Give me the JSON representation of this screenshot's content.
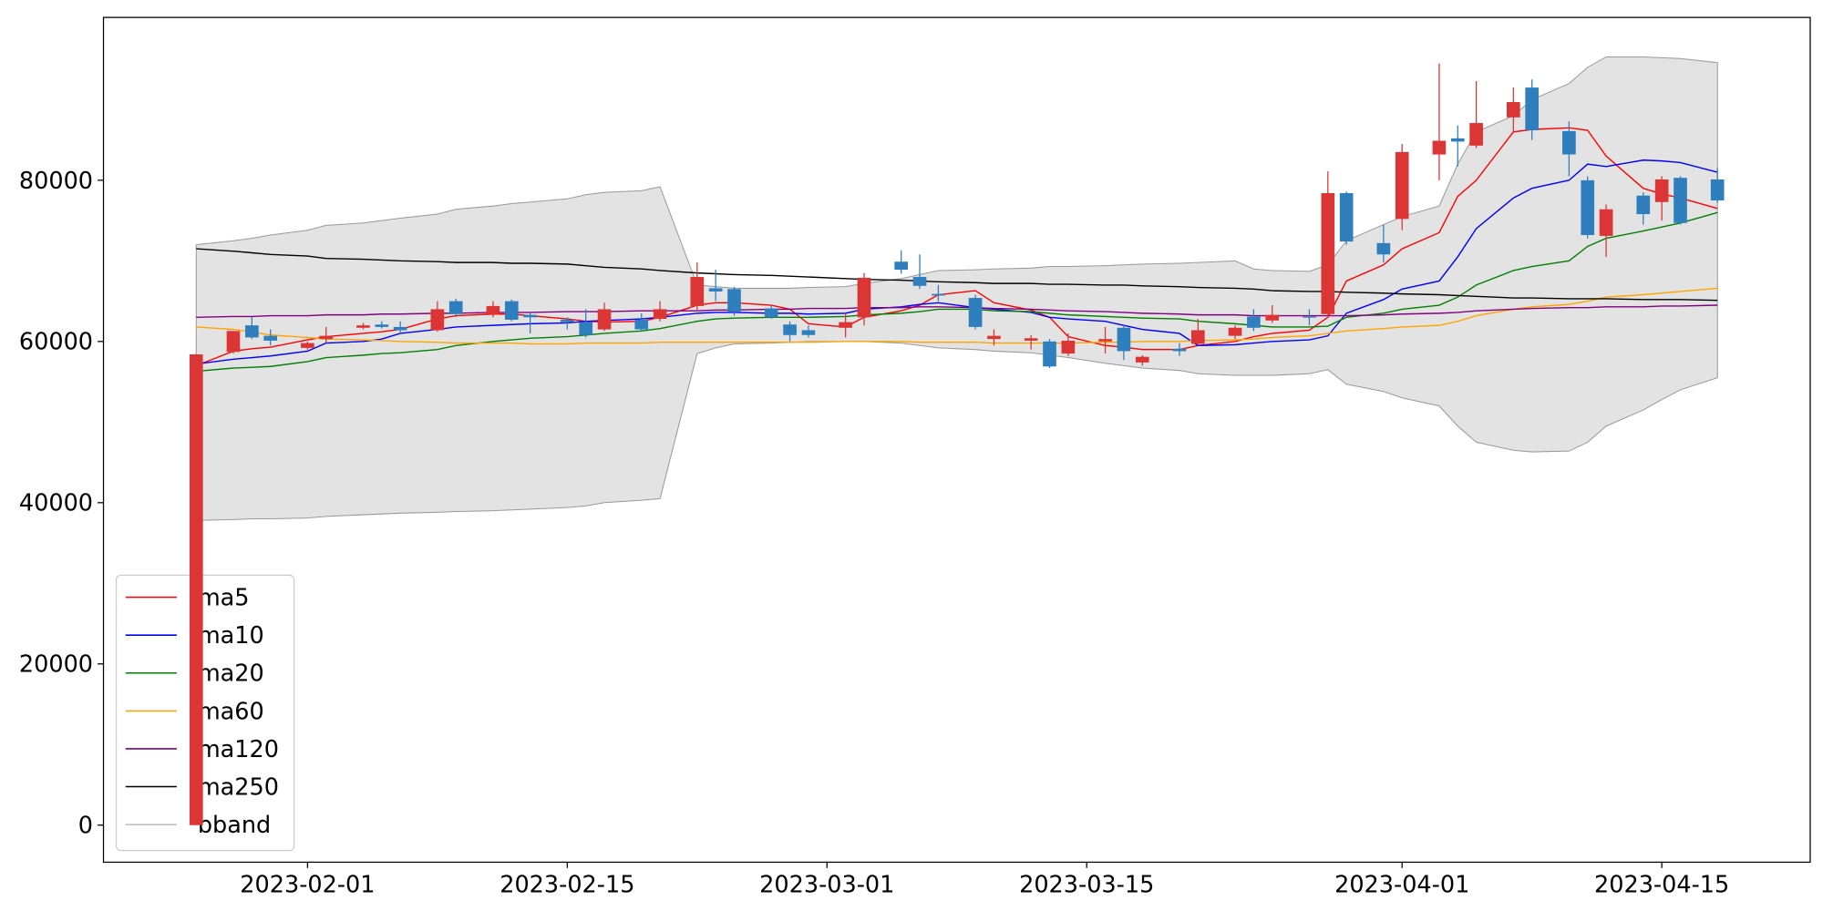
{
  "chart_data": {
    "type": "candlestick",
    "x": [
      "2023-01-26",
      "2023-01-28",
      "2023-01-29",
      "2023-01-30",
      "2023-02-01",
      "2023-02-02",
      "2023-02-04",
      "2023-02-05",
      "2023-02-06",
      "2023-02-08",
      "2023-02-09",
      "2023-02-11",
      "2023-02-12",
      "2023-02-13",
      "2023-02-15",
      "2023-02-16",
      "2023-02-17",
      "2023-02-19",
      "2023-02-20",
      "2023-02-22",
      "2023-02-23",
      "2023-02-24",
      "2023-02-26",
      "2023-02-27",
      "2023-02-28",
      "2023-03-02",
      "2023-03-03",
      "2023-03-05",
      "2023-03-06",
      "2023-03-07",
      "2023-03-09",
      "2023-03-10",
      "2023-03-12",
      "2023-03-13",
      "2023-03-14",
      "2023-03-16",
      "2023-03-17",
      "2023-03-18",
      "2023-03-20",
      "2023-03-21",
      "2023-03-23",
      "2023-03-24",
      "2023-03-25",
      "2023-03-27",
      "2023-03-28",
      "2023-03-29",
      "2023-03-31",
      "2023-04-01",
      "2023-04-03",
      "2023-04-04",
      "2023-04-05",
      "2023-04-07",
      "2023-04-08",
      "2023-04-10",
      "2023-04-11",
      "2023-04-12",
      "2023-04-14",
      "2023-04-15",
      "2023-04-16",
      "2023-04-18"
    ],
    "open": [
      0,
      58700,
      62000,
      60700,
      59200,
      60300,
      61700,
      62100,
      61800,
      61400,
      65000,
      63400,
      65000,
      63300,
      62700,
      62400,
      61500,
      62700,
      62800,
      64400,
      66600,
      66500,
      64100,
      62100,
      61400,
      61700,
      63000,
      69900,
      68000,
      65900,
      65400,
      60300,
      60100,
      60000,
      58500,
      60000,
      61700,
      57400,
      59100,
      59700,
      60700,
      63100,
      62600,
      63100,
      63400,
      78400,
      72200,
      75200,
      83200,
      85200,
      84300,
      87800,
      91500,
      86100,
      80000,
      73100,
      78100,
      77300,
      80300,
      80100
    ],
    "high": [
      58400,
      61300,
      63000,
      61500,
      60000,
      61800,
      62300,
      62500,
      62500,
      65000,
      65300,
      65000,
      65200,
      63500,
      63000,
      64000,
      64800,
      63500,
      65000,
      69800,
      68900,
      66800,
      64500,
      62500,
      62000,
      63500,
      68500,
      71300,
      70800,
      67000,
      65800,
      61500,
      60800,
      60300,
      61000,
      61800,
      62000,
      58300,
      59800,
      62800,
      62000,
      64000,
      64500,
      64000,
      81100,
      78600,
      74500,
      84500,
      94500,
      86800,
      92300,
      91500,
      92500,
      87300,
      80500,
      77000,
      78500,
      80500,
      80500,
      81500
    ],
    "low": [
      0,
      58500,
      60300,
      59500,
      59000,
      59800,
      61500,
      61600,
      61000,
      61200,
      63000,
      63000,
      62500,
      61000,
      61500,
      60500,
      61300,
      61200,
      62500,
      63800,
      65000,
      63200,
      62800,
      60000,
      60500,
      60500,
      62000,
      68400,
      66500,
      65000,
      61500,
      59500,
      59000,
      56700,
      58200,
      58500,
      57700,
      57000,
      58200,
      59500,
      60300,
      61300,
      62300,
      62000,
      63000,
      72000,
      69800,
      73800,
      80000,
      81700,
      84000,
      86000,
      85000,
      80500,
      72800,
      70500,
      74500,
      75000,
      74500,
      77200
    ],
    "close": [
      58400,
      61300,
      60500,
      60100,
      59800,
      60700,
      62000,
      61800,
      61400,
      64000,
      63400,
      64400,
      62700,
      63000,
      62400,
      60800,
      64000,
      61500,
      64000,
      68000,
      66200,
      63700,
      63000,
      60800,
      60800,
      62400,
      67900,
      68900,
      66900,
      65700,
      61800,
      60700,
      60400,
      56900,
      60100,
      60300,
      58800,
      58100,
      58800,
      61400,
      61700,
      61700,
      63300,
      63000,
      78400,
      72400,
      70800,
      83500,
      84900,
      84800,
      87100,
      89700,
      86200,
      83200,
      73200,
      76400,
      75800,
      80100,
      74700,
      77500
    ],
    "up_color": "#dc3535",
    "down_color": "#2f7fbf",
    "series": [
      {
        "name": "ma5",
        "color": "#ff0000",
        "values": [
          57000,
          58800,
          59100,
          59300,
          60200,
          60600,
          61000,
          61200,
          61500,
          62800,
          63200,
          63400,
          63400,
          63200,
          62800,
          62500,
          62400,
          62500,
          63000,
          64500,
          64800,
          64800,
          64500,
          64000,
          62200,
          61800,
          63000,
          63800,
          64500,
          65800,
          66300,
          64800,
          63900,
          63000,
          60600,
          59500,
          59300,
          59000,
          59000,
          59500,
          60000,
          60600,
          61000,
          61400,
          63000,
          67500,
          69500,
          71500,
          73500,
          78000,
          80000,
          86000,
          86300,
          86500,
          86200,
          83000,
          79000,
          78300,
          77800,
          76500
        ]
      },
      {
        "name": "ma10",
        "color": "#0000ff",
        "values": [
          57200,
          57800,
          58000,
          58200,
          58800,
          59800,
          60000,
          60300,
          61000,
          61500,
          61800,
          62000,
          62100,
          62200,
          62300,
          62500,
          62600,
          62800,
          63000,
          63500,
          63600,
          63600,
          63500,
          63500,
          63400,
          63500,
          64000,
          64300,
          64600,
          64800,
          64200,
          64000,
          63600,
          63000,
          62800,
          62500,
          62000,
          61500,
          61000,
          59500,
          59600,
          59800,
          60000,
          60200,
          60700,
          63500,
          65200,
          66500,
          67500,
          70500,
          74000,
          77800,
          79000,
          80000,
          82000,
          81700,
          82500,
          82400,
          82200,
          81000
        ]
      },
      {
        "name": "ma20",
        "color": "#008000",
        "values": [
          56300,
          56700,
          56800,
          56900,
          57500,
          58000,
          58300,
          58500,
          58600,
          59000,
          59500,
          60000,
          60200,
          60400,
          60600,
          60800,
          61000,
          61300,
          61600,
          62500,
          62800,
          62900,
          63000,
          63000,
          63000,
          63100,
          63300,
          63500,
          63700,
          64000,
          64000,
          63800,
          63700,
          63500,
          63300,
          63100,
          63000,
          62900,
          62800,
          62500,
          62200,
          62000,
          61800,
          61800,
          61900,
          63000,
          63500,
          64000,
          64500,
          65500,
          67000,
          68800,
          69300,
          70000,
          71800,
          72800,
          73700,
          74200,
          74700,
          76000
        ]
      },
      {
        "name": "ma60",
        "color": "#ffa500",
        "values": [
          61800,
          61500,
          61200,
          60800,
          60500,
          60300,
          60200,
          60100,
          60000,
          59900,
          59800,
          59800,
          59800,
          59700,
          59700,
          59800,
          59800,
          59800,
          59900,
          59900,
          59900,
          59900,
          59900,
          59900,
          59900,
          60000,
          60000,
          60000,
          59900,
          59900,
          59900,
          59800,
          59800,
          59800,
          59800,
          59900,
          59900,
          60000,
          60000,
          60100,
          60200,
          60300,
          60500,
          60700,
          61000,
          61300,
          61600,
          61800,
          62000,
          62500,
          63200,
          64000,
          64300,
          64600,
          65000,
          65500,
          65800,
          66000,
          66200,
          66600
        ]
      },
      {
        "name": "ma120",
        "color": "#800080",
        "values": [
          63000,
          63100,
          63100,
          63200,
          63200,
          63300,
          63300,
          63400,
          63400,
          63500,
          63500,
          63600,
          63600,
          63600,
          63700,
          63700,
          63700,
          63800,
          63800,
          63800,
          63900,
          63900,
          64000,
          64000,
          64100,
          64100,
          64200,
          64200,
          64300,
          64300,
          64200,
          64100,
          64000,
          63900,
          63800,
          63700,
          63600,
          63500,
          63400,
          63300,
          63300,
          63200,
          63200,
          63200,
          63200,
          63200,
          63300,
          63400,
          63500,
          63600,
          63800,
          64000,
          64100,
          64200,
          64200,
          64300,
          64300,
          64400,
          64400,
          64500
        ]
      },
      {
        "name": "ma250",
        "color": "#000000",
        "values": [
          71500,
          71200,
          71000,
          70800,
          70600,
          70300,
          70200,
          70100,
          70000,
          69900,
          69800,
          69800,
          69700,
          69700,
          69600,
          69400,
          69200,
          69000,
          68800,
          68500,
          68400,
          68300,
          68200,
          68100,
          68000,
          67800,
          67700,
          67600,
          67500,
          67400,
          67300,
          67200,
          67200,
          67100,
          67100,
          67000,
          67000,
          66900,
          66800,
          66700,
          66600,
          66500,
          66300,
          66200,
          66200,
          66100,
          66000,
          65900,
          65800,
          65700,
          65600,
          65400,
          65400,
          65300,
          65300,
          65300,
          65200,
          65200,
          65200,
          65100
        ]
      }
    ],
    "band": {
      "name": "bband",
      "color": "#999999",
      "fill": "#e3e3e3",
      "upper": [
        72000,
        72500,
        72800,
        73200,
        73800,
        74400,
        74700,
        75000,
        75300,
        75800,
        76400,
        76800,
        77100,
        77300,
        77700,
        78200,
        78500,
        78700,
        79200,
        67000,
        66800,
        66600,
        66600,
        66600,
        66700,
        66800,
        67200,
        67800,
        68300,
        68800,
        68900,
        69000,
        69100,
        69300,
        69300,
        69400,
        69500,
        69600,
        69700,
        69800,
        70000,
        69000,
        68800,
        68700,
        69500,
        72500,
        74500,
        75500,
        76800,
        82000,
        86000,
        88000,
        90000,
        92000,
        94000,
        95300,
        95300,
        95200,
        95100,
        94600
      ],
      "lower": [
        37800,
        37900,
        38000,
        38000,
        38100,
        38300,
        38500,
        38600,
        38700,
        38800,
        38900,
        39000,
        39100,
        39200,
        39400,
        39600,
        40000,
        40300,
        40500,
        58500,
        59200,
        59700,
        59800,
        59900,
        60000,
        60000,
        60000,
        59800,
        59500,
        59200,
        59000,
        58800,
        58600,
        58300,
        58000,
        57300,
        57000,
        56700,
        56400,
        56000,
        55800,
        55800,
        55800,
        56000,
        56500,
        54700,
        53800,
        53000,
        52000,
        49500,
        47500,
        46500,
        46300,
        46400,
        47500,
        49500,
        51500,
        52800,
        54000,
        55500
      ]
    },
    "xlim": [
      "2023-01-21",
      "2023-04-23"
    ],
    "xticks": [
      "2023-02-01",
      "2023-02-15",
      "2023-03-01",
      "2023-03-15",
      "2023-04-01",
      "2023-04-15"
    ],
    "ylim": [
      -4600,
      100200
    ],
    "yticks": [
      0,
      20000,
      40000,
      60000,
      80000
    ],
    "grid": false,
    "legend": "lower left"
  }
}
